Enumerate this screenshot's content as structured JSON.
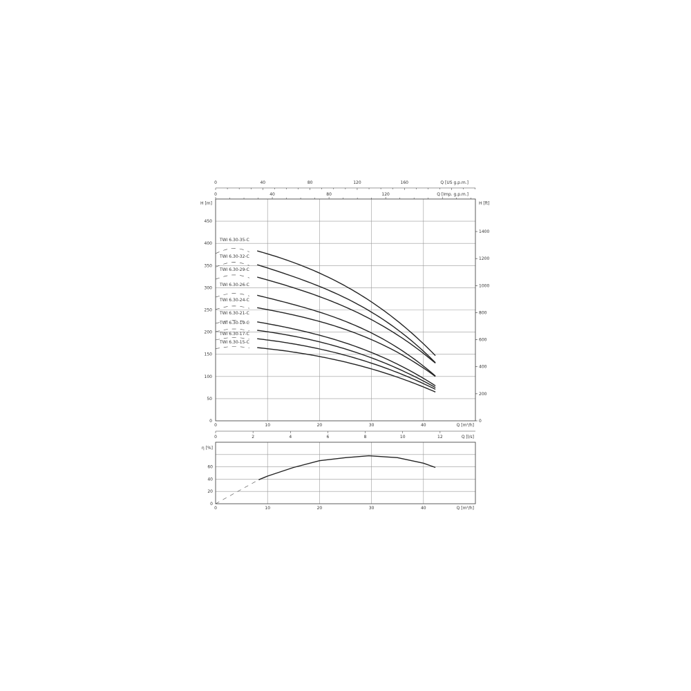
{
  "chart_data": [
    {
      "type": "line",
      "x_axis_bottom": {
        "label": "Q [m³/h]",
        "range": [
          0,
          50
        ],
        "ticks": [
          0,
          10,
          20,
          30,
          40
        ]
      },
      "x_axis_top_1": {
        "label": "Q [US g.p.m.]",
        "ticks": [
          0,
          40,
          80,
          120,
          160
        ]
      },
      "x_axis_top_2": {
        "label": "Q [Imp. g.p.m.]",
        "ticks": [
          0,
          40,
          80,
          120
        ]
      },
      "y_axis_left": {
        "label": "H [m]",
        "range": [
          0,
          500
        ],
        "ticks": [
          0,
          50,
          100,
          150,
          200,
          250,
          300,
          350,
          400,
          450
        ]
      },
      "y_axis_right": {
        "label": "H [ft]",
        "ticks": [
          0,
          200,
          400,
          600,
          800,
          1000,
          1200,
          1400
        ]
      },
      "grid": true,
      "series": [
        {
          "name": "TWI 6.30-35-C",
          "x": [
            8,
            20,
            30,
            42.3
          ],
          "y": [
            383,
            333,
            268,
            147
          ]
        },
        {
          "name": "TWI 6.30-32-C",
          "x": [
            8,
            20,
            30,
            42.3
          ],
          "y": [
            352,
            303,
            245,
            131
          ]
        },
        {
          "name": "TWI 6.30-29-C",
          "x": [
            8,
            20,
            30,
            42.3
          ],
          "y": [
            324,
            280,
            228,
            130
          ]
        },
        {
          "name": "TWI 6.30-26-C",
          "x": [
            8,
            20,
            30,
            42.3
          ],
          "y": [
            283,
            245,
            198,
            101
          ]
        },
        {
          "name": "TWI 6.30-24-C",
          "x": [
            8,
            20,
            30,
            42.3
          ],
          "y": [
            255,
            224,
            183,
            100
          ]
        },
        {
          "name": "TWI 6.30-21-C",
          "x": [
            8,
            20,
            30,
            42.3
          ],
          "y": [
            223,
            193,
            154,
            79
          ]
        },
        {
          "name": "TWI 6.30-19-C",
          "x": [
            8,
            20,
            30,
            42.3
          ],
          "y": [
            204,
            178,
            142,
            75
          ]
        },
        {
          "name": "TWI 6.30-17-C",
          "x": [
            8,
            20,
            30,
            42.3
          ],
          "y": [
            185,
            162,
            130,
            71
          ]
        },
        {
          "name": "TWI 6.30-15-C",
          "x": [
            8,
            20,
            30,
            42.3
          ],
          "y": [
            165,
            145,
            117,
            65
          ]
        }
      ]
    },
    {
      "type": "line",
      "x_axis_bottom": {
        "label": "Q [m³/h]",
        "range": [
          0,
          50
        ],
        "ticks": [
          0,
          10,
          20,
          30,
          40
        ]
      },
      "x_axis_top": {
        "label": "Q [l/s]",
        "ticks": [
          0,
          2,
          4,
          6,
          8,
          10,
          12
        ]
      },
      "y_axis_left": {
        "label": "η [%]",
        "range": [
          0,
          100
        ],
        "ticks": [
          0,
          20,
          40,
          60
        ]
      },
      "grid": true,
      "series": [
        {
          "x": [
            8.3,
            10,
            15,
            20,
            25,
            29.5,
            35,
            40,
            42.3
          ],
          "y": [
            39,
            45,
            59,
            70,
            75,
            78,
            75,
            66,
            59
          ]
        }
      ]
    }
  ]
}
